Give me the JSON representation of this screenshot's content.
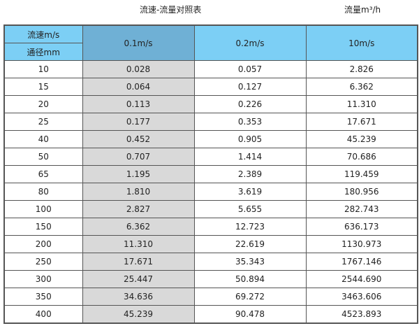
{
  "title": "流速-流量对照表",
  "unit_label": "流量m³/h",
  "header": {
    "velocity_label": "流速m/s",
    "diameter_label": "通径mm",
    "columns": [
      "0.1m/s",
      "0.2m/s",
      "10m/s"
    ]
  },
  "rows": [
    {
      "dn": "10",
      "v1": "0.028",
      "v2": "0.057",
      "v3": "2.826"
    },
    {
      "dn": "15",
      "v1": "0.064",
      "v2": "0.127",
      "v3": "6.362"
    },
    {
      "dn": "20",
      "v1": "0.113",
      "v2": "0.226",
      "v3": "11.310"
    },
    {
      "dn": "25",
      "v1": "0.177",
      "v2": "0.353",
      "v3": "17.671"
    },
    {
      "dn": "40",
      "v1": "0.452",
      "v2": "0.905",
      "v3": "45.239"
    },
    {
      "dn": "50",
      "v1": "0.707",
      "v2": "1.414",
      "v3": "70.686"
    },
    {
      "dn": "65",
      "v1": "1.195",
      "v2": "2.389",
      "v3": "119.459"
    },
    {
      "dn": "80",
      "v1": "1.810",
      "v2": "3.619",
      "v3": "180.956"
    },
    {
      "dn": "100",
      "v1": "2.827",
      "v2": "5.655",
      "v3": "282.743"
    },
    {
      "dn": "150",
      "v1": "6.362",
      "v2": "12.723",
      "v3": "636.173"
    },
    {
      "dn": "200",
      "v1": "11.310",
      "v2": "22.619",
      "v3": "1130.973"
    },
    {
      "dn": "250",
      "v1": "17.671",
      "v2": "35.343",
      "v3": "1767.146"
    },
    {
      "dn": "300",
      "v1": "25.447",
      "v2": "50.894",
      "v3": "2544.690"
    },
    {
      "dn": "350",
      "v1": "34.636",
      "v2": "69.272",
      "v3": "3463.606"
    },
    {
      "dn": "400",
      "v1": "45.239",
      "v2": "90.478",
      "v3": "4523.893"
    }
  ],
  "colors": {
    "header": "#7ccff5",
    "header_highlight": "#6fb0d5",
    "highlight_column": "#d9d9d9"
  }
}
